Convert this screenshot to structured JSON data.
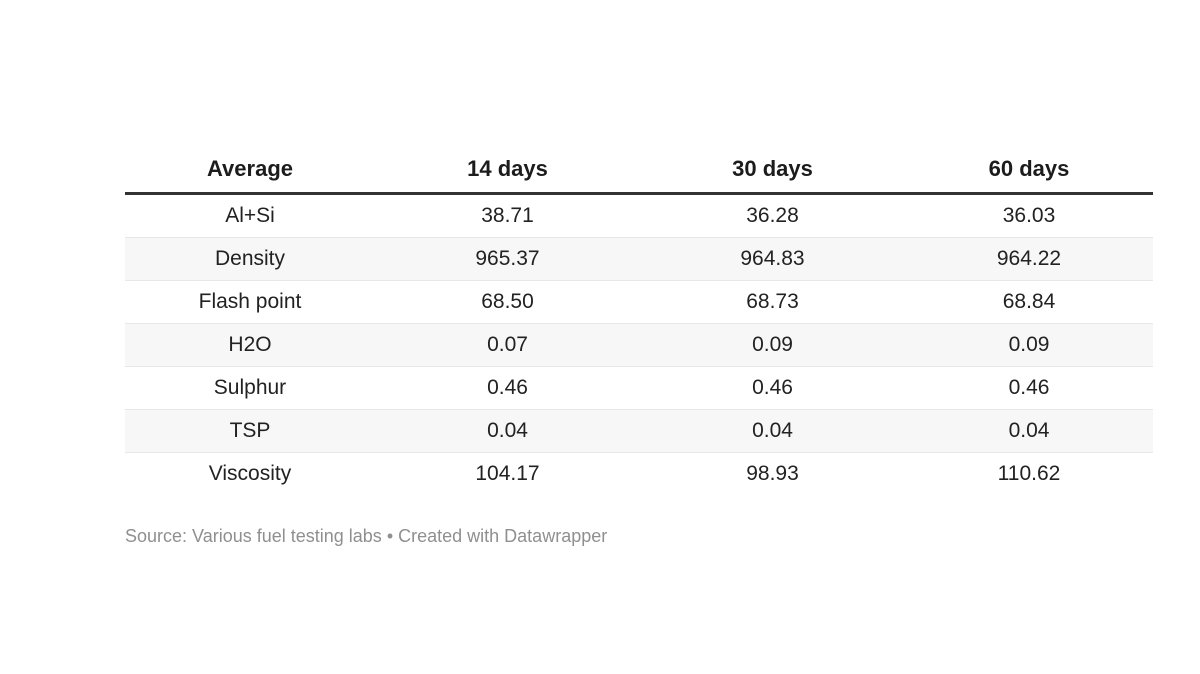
{
  "chart_data": {
    "type": "table",
    "columns": [
      "Average",
      "14 days",
      "30 days",
      "60 days"
    ],
    "rows": [
      [
        "Al+Si",
        "38.71",
        "36.28",
        "36.03"
      ],
      [
        "Density",
        "965.37",
        "964.83",
        "964.22"
      ],
      [
        "Flash point",
        "68.50",
        "68.73",
        "68.84"
      ],
      [
        "H2O",
        "0.07",
        "0.09",
        "0.09"
      ],
      [
        "Sulphur",
        "0.46",
        "0.46",
        "0.46"
      ],
      [
        "TSP",
        "0.04",
        "0.04",
        "0.04"
      ],
      [
        "Viscosity",
        "104.17",
        "98.93",
        "110.62"
      ]
    ],
    "layout": {
      "alignment": "center",
      "striped_row_labels": [
        "Density",
        "H2O",
        "TSP"
      ],
      "header_rule": true,
      "legend_position": "none",
      "grid": "horizontal-row-borders"
    }
  },
  "footer": {
    "source": "Source: Various fuel testing labs",
    "separator": "•",
    "credit": "Created with Datawrapper"
  },
  "colors": {
    "background": "#ffffff",
    "text": "#222222",
    "header_text": "#1c1c1c",
    "header_rule": "#333333",
    "row_stripe": "#f7f7f7",
    "row_border": "#e7e7e7",
    "footer_text": "#8f8f8f"
  }
}
